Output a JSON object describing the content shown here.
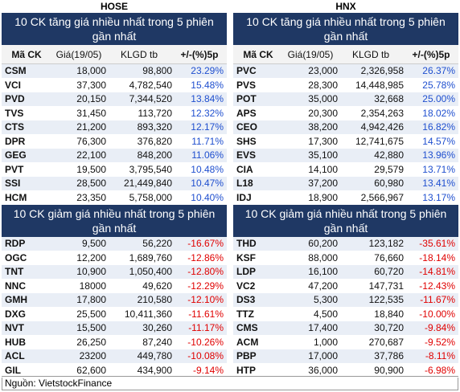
{
  "panels": [
    {
      "exchange": "HOSE",
      "gainers_title": "10 CK tăng giá nhiều nhất trong 5 phiên gần nhất",
      "header": [
        "Mã CK",
        "Giá(19/05)",
        "KLGD tb",
        "+/-(%)5p"
      ],
      "gainers": [
        [
          "CSM",
          "18,000",
          "98,800",
          "23.29%"
        ],
        [
          "VCI",
          "37,300",
          "4,782,540",
          "15.48%"
        ],
        [
          "PVD",
          "20,150",
          "7,344,520",
          "13.84%"
        ],
        [
          "TVS",
          "31,450",
          "113,720",
          "12.32%"
        ],
        [
          "CTS",
          "21,200",
          "893,320",
          "12.17%"
        ],
        [
          "DPR",
          "76,300",
          "376,820",
          "11.71%"
        ],
        [
          "GEG",
          "22,100",
          "848,200",
          "11.06%"
        ],
        [
          "PVT",
          "19,500",
          "3,795,540",
          "10.48%"
        ],
        [
          "SSI",
          "28,500",
          "21,449,840",
          "10.47%"
        ],
        [
          "HCM",
          "23,350",
          "5,758,000",
          "10.40%"
        ]
      ],
      "losers_title": "10 CK giảm giá nhiều nhất trong 5 phiên gần nhất",
      "losers": [
        [
          "RDP",
          "9,500",
          "56,220",
          "-16.67%"
        ],
        [
          "OGC",
          "12,200",
          "1,689,760",
          "-12.86%"
        ],
        [
          "TNT",
          "10,900",
          "1,050,400",
          "-12.80%"
        ],
        [
          "NNC",
          "18000",
          "49,620",
          "-12.29%"
        ],
        [
          "GMH",
          "17,800",
          "210,580",
          "-12.10%"
        ],
        [
          "DXG",
          "25,500",
          "10,411,360",
          "-11.61%"
        ],
        [
          "NVT",
          "15,500",
          "30,260",
          "-11.17%"
        ],
        [
          "HUB",
          "26,250",
          "87,240",
          "-10.26%"
        ],
        [
          "ACL",
          "23200",
          "449,780",
          "-10.08%"
        ],
        [
          "GIL",
          "62,600",
          "434,900",
          "-9.14%"
        ]
      ]
    },
    {
      "exchange": "HNX",
      "gainers_title": "10 CK tăng giá nhiều nhất trong 5 phiên gần nhất",
      "header": [
        "Mã CK",
        "Giá(19/05)",
        "KLGD tb",
        "+/-(%)5p"
      ],
      "gainers": [
        [
          "PVC",
          "23,000",
          "2,326,958",
          "26.37%"
        ],
        [
          "PVS",
          "28,300",
          "14,448,985",
          "25.78%"
        ],
        [
          "POT",
          "35,000",
          "32,668",
          "25.00%"
        ],
        [
          "APS",
          "20,300",
          "2,354,263",
          "18.02%"
        ],
        [
          "CEO",
          "38,200",
          "4,942,426",
          "16.82%"
        ],
        [
          "SHS",
          "17,300",
          "12,741,675",
          "14.57%"
        ],
        [
          "EVS",
          "35,100",
          "42,880",
          "13.96%"
        ],
        [
          "CIA",
          "14,100",
          "29,579",
          "13.71%"
        ],
        [
          "L18",
          "37,200",
          "60,980",
          "13.41%"
        ],
        [
          "IDJ",
          "18,900",
          "2,566,967",
          "13.17%"
        ]
      ],
      "losers_title": "10 CK giảm giá nhiều nhất trong 5 phiên gần nhất",
      "losers": [
        [
          "THD",
          "60,200",
          "123,182",
          "-35.61%"
        ],
        [
          "KSF",
          "88,000",
          "76,660",
          "-18.14%"
        ],
        [
          "LDP",
          "16,100",
          "60,720",
          "-14.81%"
        ],
        [
          "VC2",
          "47,200",
          "147,731",
          "-12.43%"
        ],
        [
          "DS3",
          "5,300",
          "122,535",
          "-11.67%"
        ],
        [
          "TTZ",
          "4,500",
          "18,840",
          "-10.00%"
        ],
        [
          "CMS",
          "17,400",
          "30,720",
          "-9.84%"
        ],
        [
          "ACM",
          "1,000",
          "270,687",
          "-9.52%"
        ],
        [
          "PBP",
          "17,000",
          "37,786",
          "-8.11%"
        ],
        [
          "HTP",
          "36,000",
          "90,900",
          "-6.98%"
        ]
      ]
    }
  ],
  "source": "Nguồn: VietstockFinance"
}
